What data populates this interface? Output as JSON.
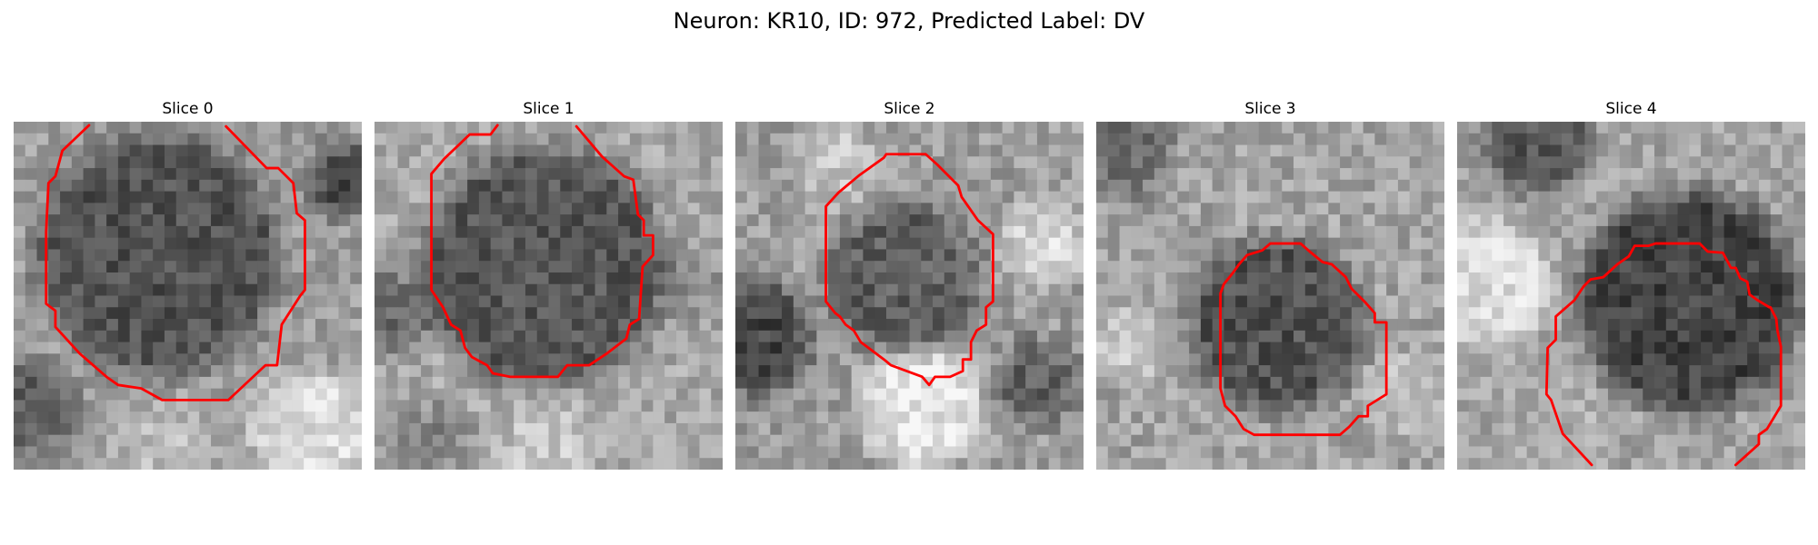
{
  "figure": {
    "title": "Neuron: KR10, ID: 972, Predicted Label: DV"
  },
  "panels": [
    {
      "title": "Slice 0"
    },
    {
      "title": "Slice 1"
    },
    {
      "title": "Slice 2"
    },
    {
      "title": "Slice 3"
    },
    {
      "title": "Slice 4"
    }
  ],
  "colors": {
    "contour": "#ff0000",
    "background": "#ffffff"
  }
}
